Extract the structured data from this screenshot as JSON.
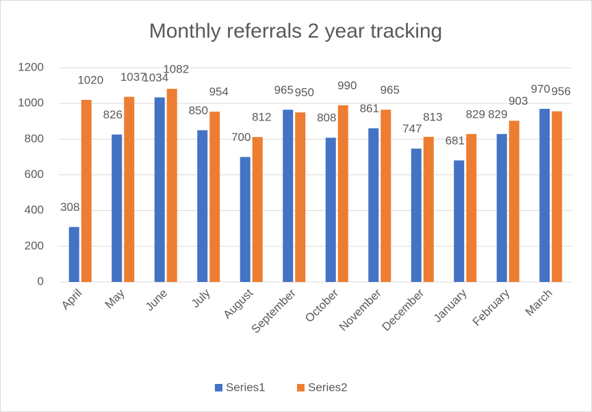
{
  "chart_data": {
    "type": "bar",
    "title": "Monthly referrals 2 year tracking",
    "categories": [
      "April",
      "May",
      "June",
      "July",
      "August",
      "September",
      "October",
      "November",
      "December",
      "January",
      "February",
      "March"
    ],
    "series": [
      {
        "name": "Series1",
        "color": "#4472c4",
        "values": [
          308,
          826,
          1034,
          850,
          700,
          965,
          808,
          861,
          747,
          681,
          829,
          970
        ]
      },
      {
        "name": "Series2",
        "color": "#ed7d31",
        "values": [
          1020,
          1037,
          1082,
          954,
          812,
          950,
          990,
          965,
          813,
          829,
          903,
          956
        ]
      }
    ],
    "ylim": [
      0,
      1200
    ],
    "yticks": [
      0,
      200,
      400,
      600,
      800,
      1000,
      1200
    ],
    "grid": true,
    "legend": "bottom"
  }
}
